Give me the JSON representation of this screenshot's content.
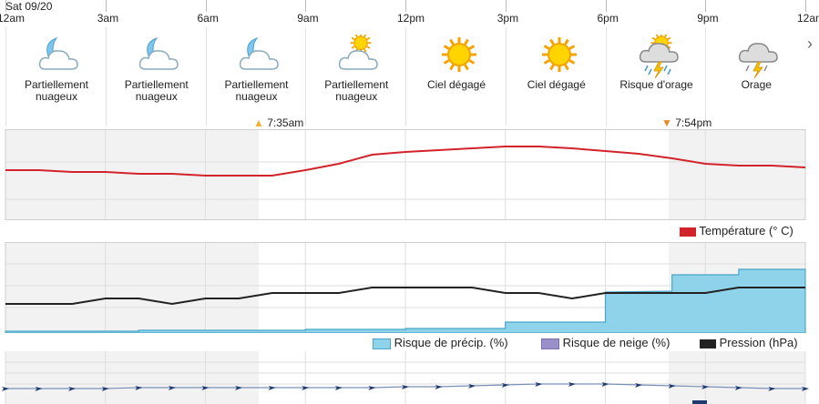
{
  "header": {
    "date": "Sat 09/20"
  },
  "hours": [
    "12am",
    "3am",
    "6am",
    "9am",
    "12pm",
    "3pm",
    "6pm",
    "9pm",
    "12am"
  ],
  "forecast": [
    {
      "label": "Partiellement nuageux",
      "icon": "partly-cloudy-night-icon"
    },
    {
      "label": "Partiellement nuageux",
      "icon": "partly-cloudy-night-icon"
    },
    {
      "label": "Partiellement nuageux",
      "icon": "partly-cloudy-night-icon"
    },
    {
      "label": "Partiellement nuageux",
      "icon": "partly-cloudy-day-icon"
    },
    {
      "label": "Ciel dégagé",
      "icon": "sun-icon"
    },
    {
      "label": "Ciel dégagé",
      "icon": "sun-icon"
    },
    {
      "label": "Risque d'orage",
      "icon": "thunderstorm-chance-icon"
    },
    {
      "label": "Orage",
      "icon": "thunderstorm-icon"
    }
  ],
  "sun": {
    "sunrise": "7:35am",
    "sunset": "7:54pm"
  },
  "legend": {
    "temperature": "Température (° C)",
    "precip": "Risque de précip. (%)",
    "snow": "Risque de neige (%)",
    "pressure": "Pression (hPa)"
  },
  "colors": {
    "temperature": "#d2232a",
    "precip": "#8fd3ea",
    "snow": "#9b8fc8",
    "pressure": "#222222",
    "night": "#f2f2f2",
    "wind": "#1f3a6e"
  },
  "chart_data": [
    {
      "type": "line",
      "name": "temperature",
      "x_hours": [
        0,
        1,
        2,
        3,
        4,
        5,
        6,
        7,
        8,
        9,
        10,
        11,
        12,
        13,
        14,
        15,
        16,
        17,
        18,
        19,
        20,
        21,
        22,
        23,
        24
      ],
      "values_rel": [
        0.45,
        0.45,
        0.47,
        0.47,
        0.49,
        0.49,
        0.51,
        0.51,
        0.51,
        0.45,
        0.38,
        0.28,
        0.25,
        0.23,
        0.21,
        0.19,
        0.19,
        0.21,
        0.24,
        0.27,
        0.32,
        0.38,
        0.4,
        0.4,
        0.42
      ]
    },
    {
      "type": "area",
      "name": "precip",
      "x_hours": [
        0,
        4,
        4,
        9,
        9,
        12,
        12,
        15,
        15,
        18,
        18,
        20,
        20,
        22,
        22,
        24
      ],
      "values_rel": [
        0.98,
        0.98,
        0.97,
        0.97,
        0.96,
        0.96,
        0.95,
        0.95,
        0.88,
        0.88,
        0.55,
        0.54,
        0.36,
        0.36,
        0.3,
        0.3
      ]
    },
    {
      "type": "line",
      "name": "pressure",
      "x_hours": [
        0,
        2,
        3,
        4,
        5,
        6,
        7,
        8,
        9,
        10,
        11,
        12,
        13,
        14,
        15,
        16,
        17,
        18,
        19,
        20,
        21,
        22,
        23,
        24
      ],
      "values_rel": [
        0.68,
        0.68,
        0.62,
        0.62,
        0.68,
        0.62,
        0.62,
        0.56,
        0.56,
        0.56,
        0.5,
        0.5,
        0.5,
        0.5,
        0.56,
        0.56,
        0.62,
        0.56,
        0.56,
        0.56,
        0.56,
        0.5,
        0.5,
        0.5
      ]
    }
  ]
}
